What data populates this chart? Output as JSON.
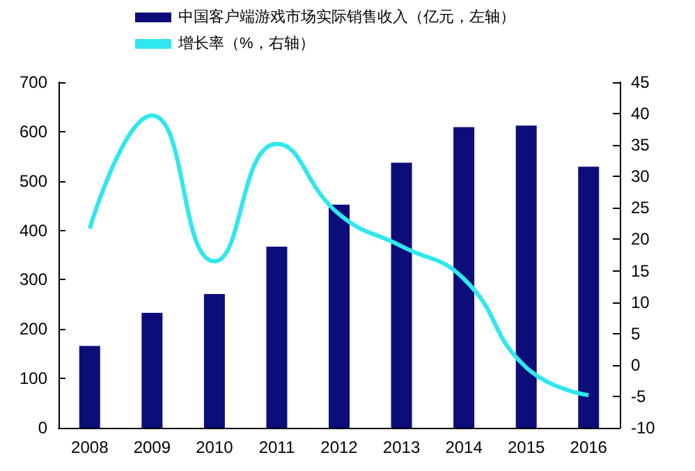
{
  "chart_data": {
    "type": "bar",
    "categories": [
      "2008",
      "2009",
      "2010",
      "2011",
      "2012",
      "2013",
      "2014",
      "2015",
      "2016"
    ],
    "series": [
      {
        "name": "中国客户端游戏市场实际销售收入（亿元，左轴）",
        "color": "#0d0d7a",
        "values": [
          166,
          233,
          271,
          367,
          452,
          537,
          609,
          612,
          529
        ]
      },
      {
        "name": "增长率（%，右轴）",
        "type": "line",
        "axis": "y2",
        "color": "#2ee8ee",
        "values": [
          21.7,
          39.7,
          16.5,
          35.2,
          24,
          18.9,
          13.7,
          -0.4,
          -4.8
        ]
      }
    ],
    "ylim": [
      0,
      700
    ],
    "yticks": [
      0,
      100,
      200,
      300,
      400,
      500,
      600,
      700
    ],
    "y2lim": [
      -10,
      45
    ],
    "y2ticks": [
      -10,
      -5,
      0,
      5,
      10,
      15,
      20,
      25,
      30,
      35,
      40,
      45
    ],
    "grid": false,
    "legend": "top left",
    "marker": "none"
  }
}
